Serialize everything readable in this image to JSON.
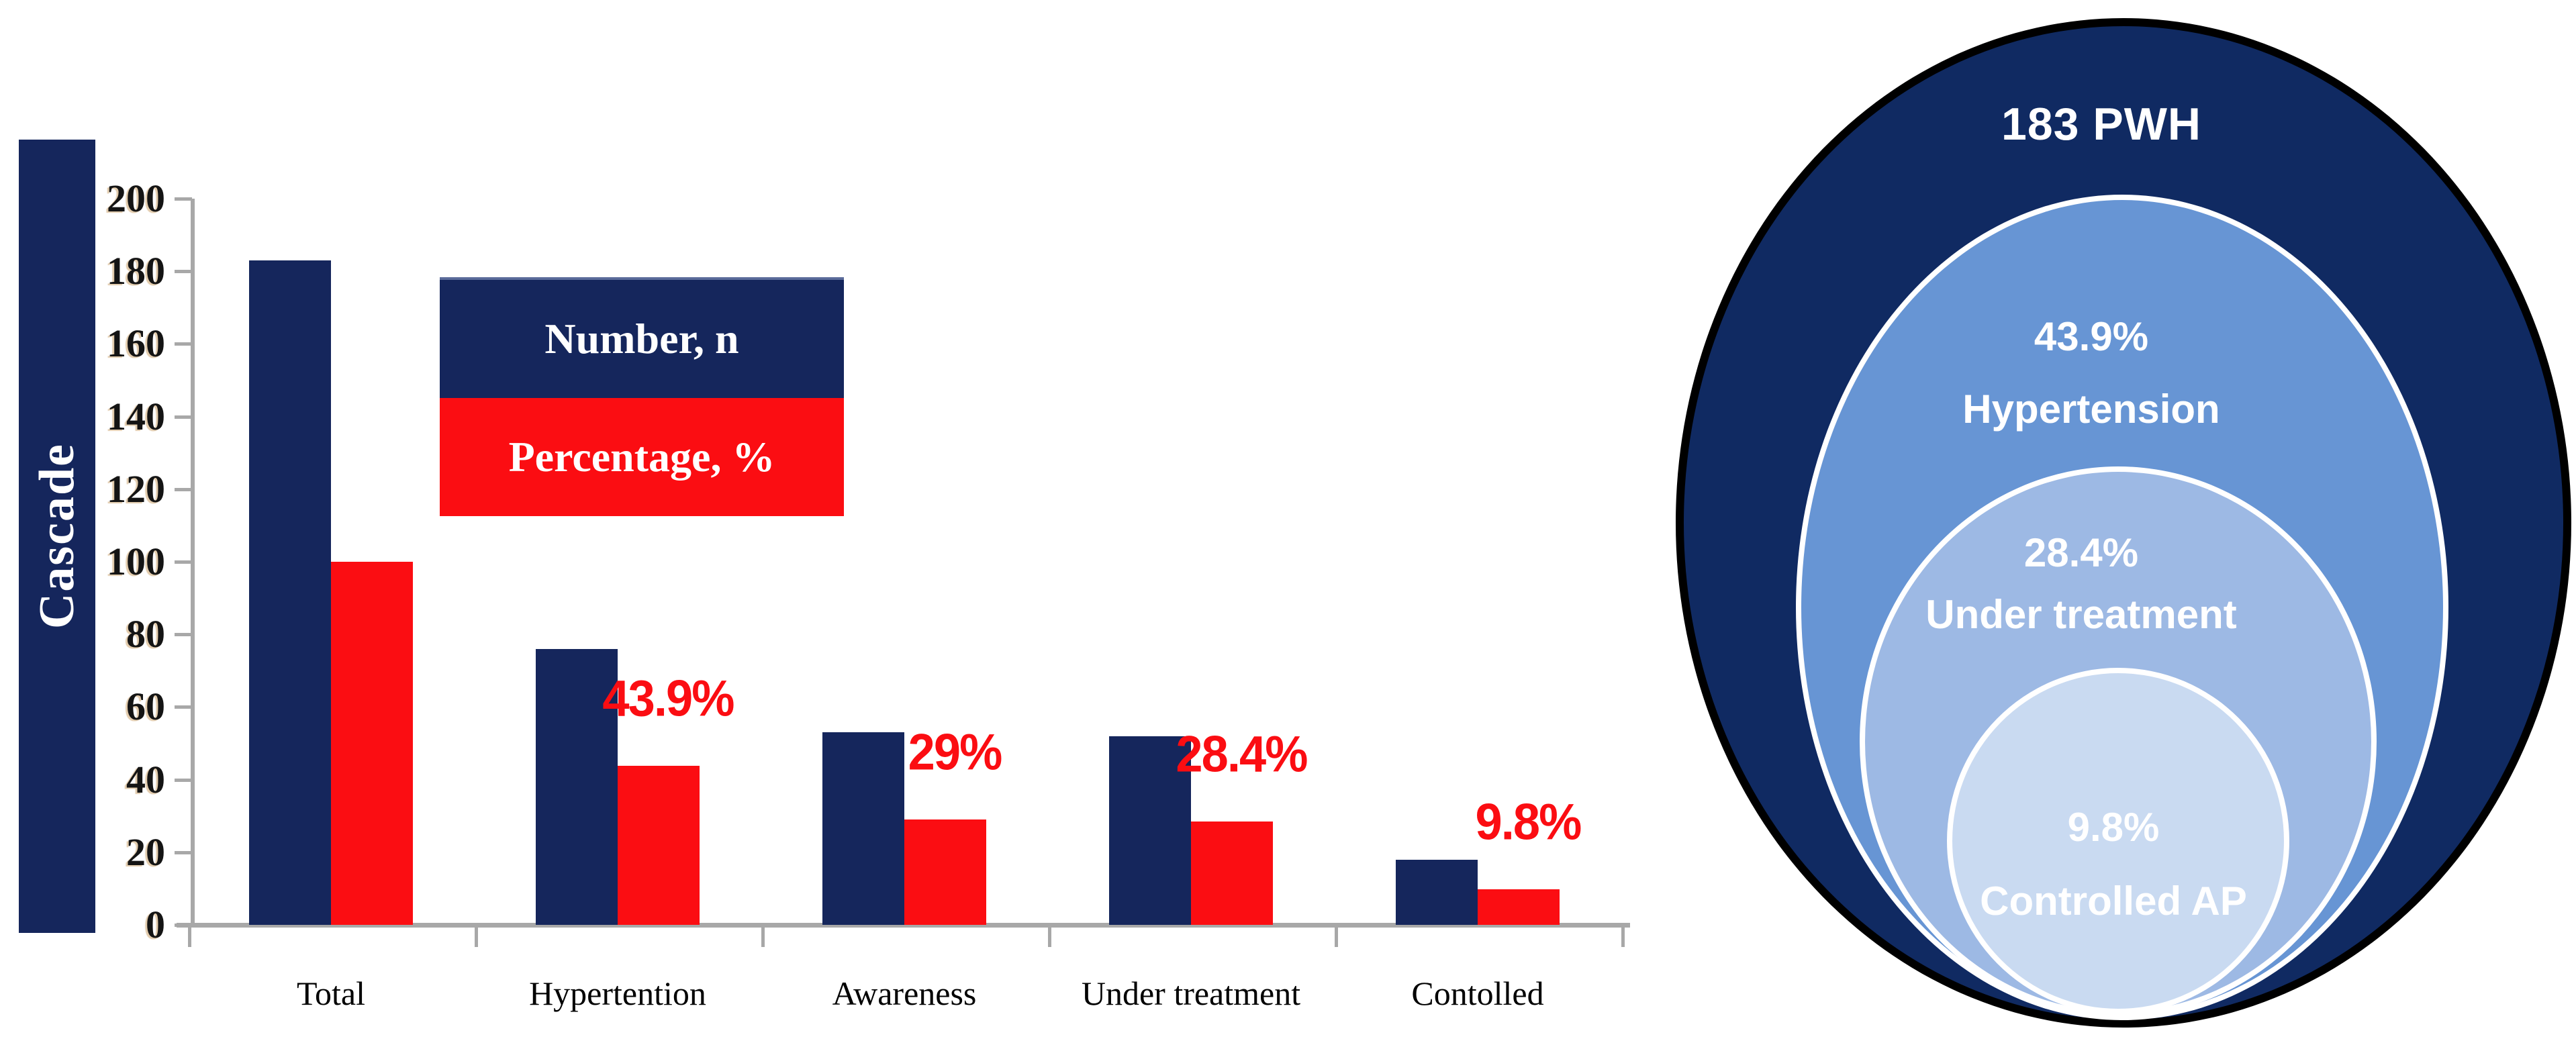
{
  "chart_data": {
    "type": "bar",
    "title": "",
    "ylabel": "Cascade",
    "xlabel": "",
    "categories": [
      "Total",
      "Hypertention",
      "Awareness",
      "Under treatment",
      "Contolled"
    ],
    "series": [
      {
        "name": "Number, n",
        "color": "#15265c",
        "values": [
          183,
          76,
          53,
          52,
          18
        ]
      },
      {
        "name": "Percentage, %",
        "color": "#fb0d12",
        "values": [
          100,
          43.9,
          29,
          28.4,
          9.8
        ],
        "bar_labels": [
          "",
          "43.9%",
          "29%",
          "28.4%",
          "9.8%"
        ]
      }
    ],
    "ylim": [
      0,
      200
    ],
    "ytick_step": 20,
    "grid": false,
    "legend_position": "upper-center-inside",
    "bar_label_color": "#fb0d12",
    "axis_color": "#a8a8a8"
  },
  "venn_data": {
    "type": "nested-ellipses",
    "rings": [
      {
        "line1": "183 PWH",
        "line2": "",
        "value": 183,
        "fill": "#102a62",
        "border": "#000000",
        "text_color": "#ffffff"
      },
      {
        "line1": "43.9%",
        "line2": "Hypertension",
        "value_pct": 43.9,
        "fill": "#6795d4",
        "border": "#ffffff",
        "text_color": "#ffffff"
      },
      {
        "line1": "28.4%",
        "line2": "Under treatment",
        "value_pct": 28.4,
        "fill": "#9db9e4",
        "border": "#ffffff",
        "text_color": "#ffffff"
      },
      {
        "line1": "9.8%",
        "line2": "Controlled AP",
        "value_pct": 9.8,
        "fill": "#c9daf1",
        "border": "#ffffff",
        "text_color": "#ffffff"
      }
    ]
  },
  "colors": {
    "navy": "#15265c",
    "red": "#fb0d12",
    "axis_gray": "#a8a8a8",
    "background": "#ffffff"
  }
}
